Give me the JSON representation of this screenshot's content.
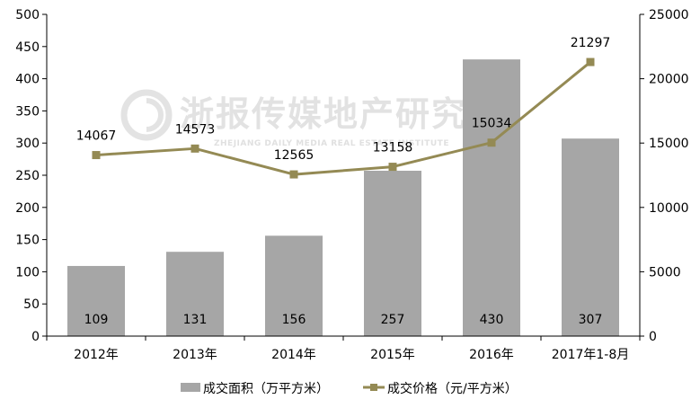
{
  "chart_data": {
    "type": "bar",
    "categories": [
      "2012年",
      "2013年",
      "2014年",
      "2015年",
      "2016年",
      "2017年1-8月"
    ],
    "series": [
      {
        "name": "成交面积（万平方米）",
        "type": "bar",
        "axis": "left",
        "values": [
          109,
          131,
          156,
          257,
          430,
          307
        ],
        "labels": [
          "109",
          "131",
          "156",
          "257",
          "430",
          "307"
        ],
        "color": "#a6a6a6"
      },
      {
        "name": "成交价格（元/平方米）",
        "type": "line",
        "axis": "right",
        "values": [
          14067,
          14573,
          12565,
          13158,
          15034,
          21297
        ],
        "labels": [
          "14067",
          "14573",
          "12565",
          "13158",
          "15034",
          "21297"
        ],
        "color": "#948a54"
      }
    ],
    "y_left": {
      "ylim": [
        0,
        500
      ],
      "ticks": [
        0,
        50,
        100,
        150,
        200,
        250,
        300,
        350,
        400,
        450,
        500
      ],
      "tick_labels": [
        "0",
        "50",
        "100",
        "150",
        "200",
        "250",
        "300",
        "350",
        "400",
        "450",
        "500"
      ]
    },
    "y_right": {
      "ylim": [
        0,
        25000
      ],
      "ticks": [
        0,
        5000,
        10000,
        15000,
        20000,
        25000
      ],
      "tick_labels": [
        "0",
        "5000",
        "10000",
        "15000",
        "20000",
        "25000"
      ]
    },
    "grid": false,
    "legend_position": "bottom-center"
  },
  "watermark": {
    "text": "浙报传媒地产研究院",
    "subtext": "ZHEJIANG DAILY MEDIA REAL ESTATE INSTITUTE"
  }
}
